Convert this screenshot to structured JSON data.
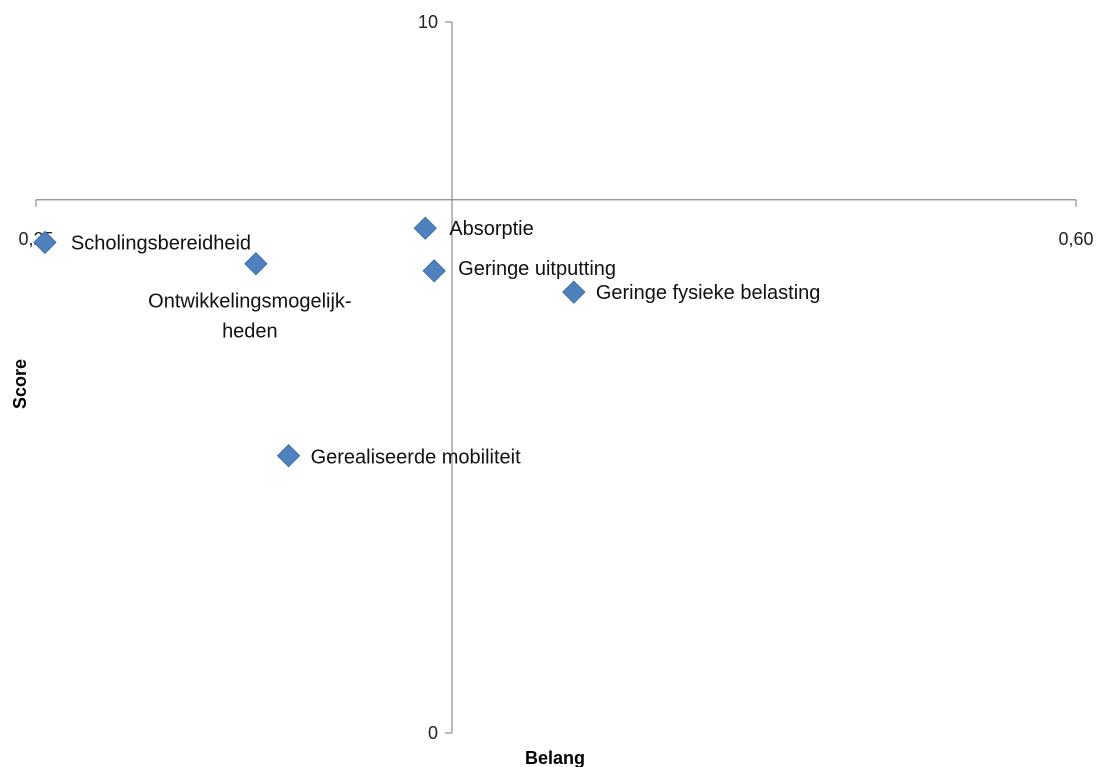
{
  "chart_data": {
    "type": "scatter",
    "title": "",
    "xlabel": "Belang",
    "ylabel": "Score",
    "xlim": [
      0.25,
      0.6
    ],
    "ylim": [
      0,
      10
    ],
    "x_crosses_y_at": 7.5,
    "y_crosses_x_at": 0.39,
    "x_tick_labels": [
      "0,25",
      "0,60"
    ],
    "y_tick_labels": [
      "0",
      "10"
    ],
    "grid": false,
    "legend": "none",
    "marker_color": "#4F81BD",
    "points": [
      {
        "label": "Scholingsbereidheid",
        "x": 0.253,
        "y": 6.9
      },
      {
        "label": "Ontwikkelingsmogelijk-\nheden",
        "x": 0.324,
        "y": 6.6
      },
      {
        "label": "Absorptie",
        "x": 0.381,
        "y": 7.1
      },
      {
        "label": "Geringe uitputting",
        "x": 0.384,
        "y": 6.5
      },
      {
        "label": "Geringe fysieke belasting",
        "x": 0.431,
        "y": 6.2
      },
      {
        "label": "Gerealiseerde mobiliteit",
        "x": 0.335,
        "y": 3.9
      }
    ]
  }
}
